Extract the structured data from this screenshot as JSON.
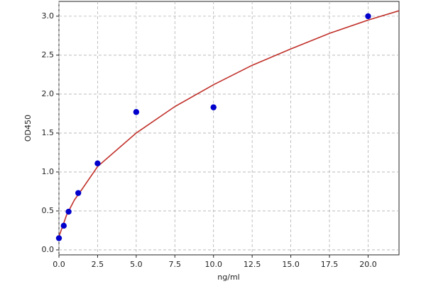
{
  "chart_data": {
    "type": "scatter",
    "x_label": "ng/ml",
    "y_label": "OD450",
    "series": [
      {
        "type": "scatter",
        "color": "#0000cc",
        "x": [
          0,
          0.3125,
          0.625,
          1.25,
          2.5,
          5,
          10,
          20
        ],
        "values": [
          0.15,
          0.31,
          0.49,
          0.73,
          1.11,
          1.77,
          1.83,
          3.0
        ]
      },
      {
        "type": "line",
        "color": "#c0302a",
        "x": [
          0,
          0.5,
          1,
          1.5,
          2.5,
          5,
          7.5,
          10,
          12.5,
          15,
          17.5,
          20,
          22
        ],
        "values": [
          0.17,
          0.45,
          0.64,
          0.78,
          1.07,
          1.5,
          1.84,
          2.12,
          2.37,
          2.58,
          2.78,
          2.95,
          3.07
        ]
      }
    ],
    "xlim": [
      0,
      22
    ],
    "ylim": [
      -0.064,
      3.19
    ],
    "xticks": [
      {
        "value": 0,
        "label": "0.0"
      },
      {
        "value": 2.5,
        "label": "2.5"
      },
      {
        "value": 5,
        "label": "5.0"
      },
      {
        "value": 7.5,
        "label": "7.5"
      },
      {
        "value": 10,
        "label": "10.0"
      },
      {
        "value": 12.5,
        "label": "12.5"
      },
      {
        "value": 15,
        "label": "15.0"
      },
      {
        "value": 17.5,
        "label": "17.5"
      },
      {
        "value": 20,
        "label": "20.0"
      }
    ],
    "yticks": [
      {
        "value": 0,
        "label": "0.0"
      },
      {
        "value": 0.5,
        "label": "0.5"
      },
      {
        "value": 1,
        "label": "1.0"
      },
      {
        "value": 1.5,
        "label": "1.5"
      },
      {
        "value": 2,
        "label": "2.0"
      },
      {
        "value": 2.5,
        "label": "2.5"
      },
      {
        "value": 3,
        "label": "3.0"
      }
    ],
    "grid": true
  }
}
